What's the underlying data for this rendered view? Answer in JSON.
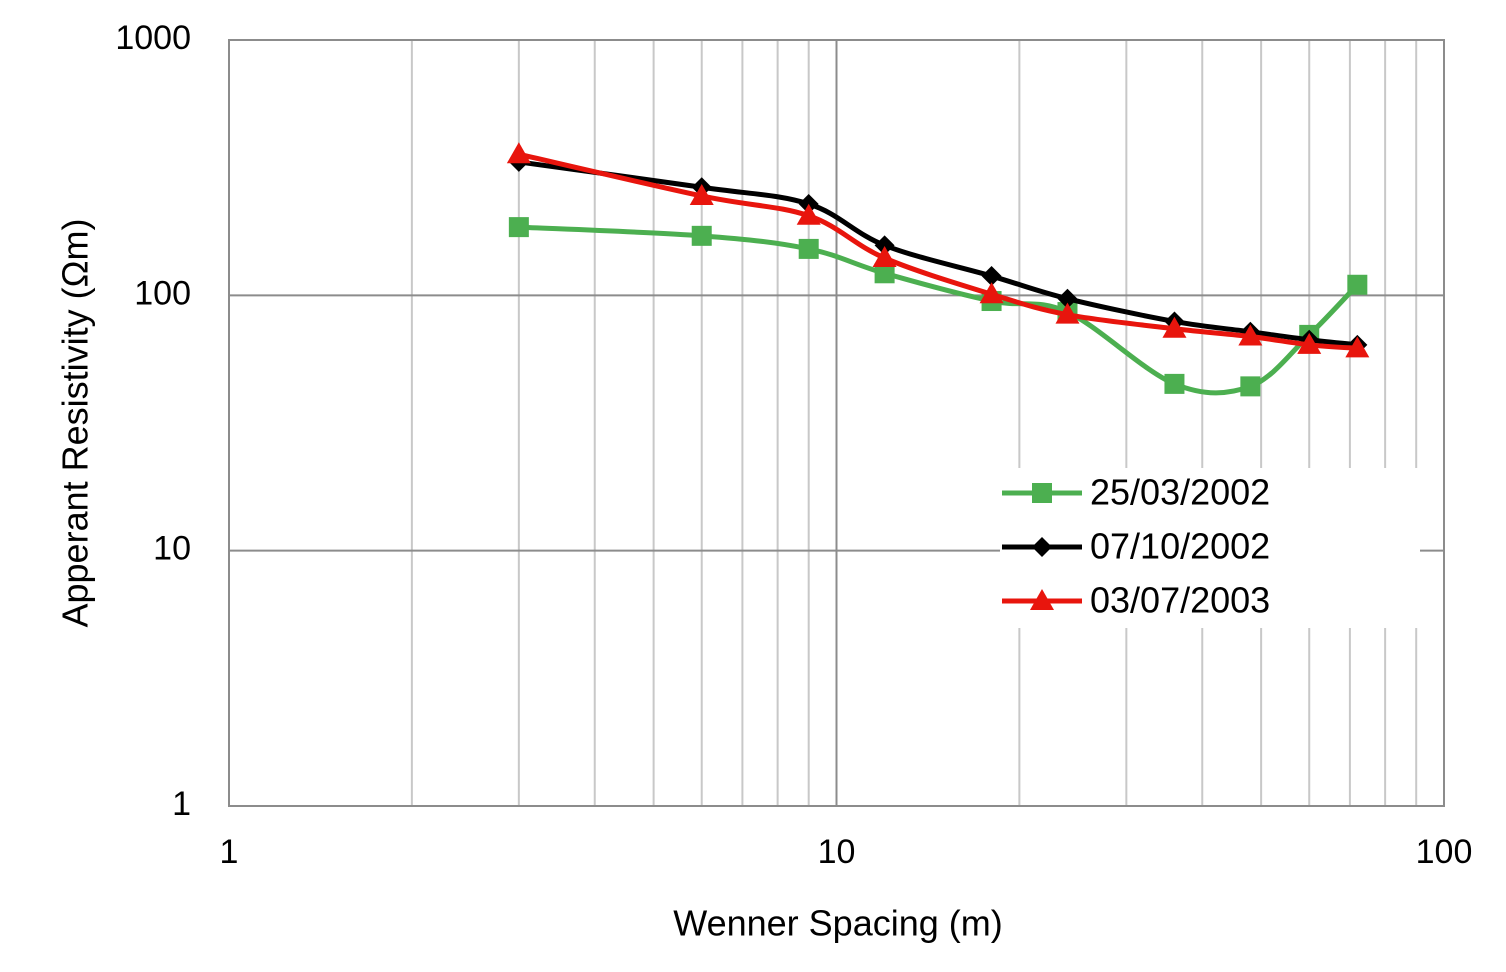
{
  "chart_data": {
    "type": "line",
    "x_label": "Wenner Spacing (m)",
    "y_label": "Apperant Resistivity (Ωm)",
    "x": [
      3,
      6,
      9,
      12,
      18,
      24,
      36,
      48,
      60,
      72
    ],
    "series": [
      {
        "name": "25/03/2002",
        "color": "#4caf50",
        "marker": "square",
        "values": [
          185,
          171,
          152,
          122,
          95,
          86,
          45,
          44,
          70,
          110
        ]
      },
      {
        "name": "07/10/2002",
        "color": "#000000",
        "marker": "diamond",
        "values": [
          333,
          265,
          228,
          157,
          119,
          97,
          79,
          72,
          67,
          64
        ]
      },
      {
        "name": "03/07/2003",
        "color": "#e8150d",
        "marker": "triangle",
        "values": [
          357,
          245,
          205,
          140,
          101,
          84,
          74,
          69,
          64,
          62
        ]
      }
    ],
    "xscale": "log",
    "yscale": "log",
    "xlim": [
      1,
      100
    ],
    "ylim": [
      1,
      1000
    ],
    "xticks": [
      1,
      10,
      100
    ],
    "yticks": [
      1,
      10,
      100,
      1000
    ],
    "xgrid_minor": [
      2,
      3,
      4,
      5,
      6,
      7,
      8,
      9,
      20,
      30,
      40,
      50,
      60,
      70,
      80,
      90
    ],
    "grid": true,
    "smooth": true,
    "legend": "right"
  }
}
